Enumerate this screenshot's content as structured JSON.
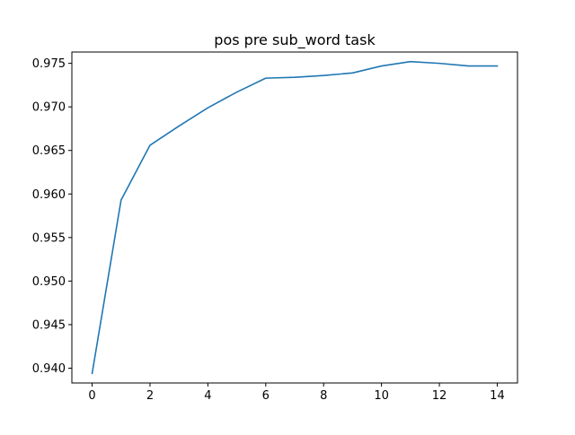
{
  "chart_data": {
    "type": "line",
    "title": "pos pre sub_word task",
    "xlabel": "",
    "ylabel": "",
    "x": [
      0,
      1,
      2,
      3,
      4,
      5,
      6,
      7,
      8,
      9,
      10,
      11,
      12,
      13,
      14
    ],
    "series": [
      {
        "values": [
          0.9394,
          0.9593,
          0.9656,
          0.9678,
          0.9699,
          0.9717,
          0.9733,
          0.9734,
          0.9736,
          0.9739,
          0.9747,
          0.9752,
          0.975,
          0.9747,
          0.9747
        ],
        "color": "#1f77b4"
      }
    ],
    "xlim": [
      -0.7,
      14.7
    ],
    "ylim": [
      0.9383,
      0.9763
    ],
    "xticks": [
      0,
      2,
      4,
      6,
      8,
      10,
      12,
      14
    ],
    "xtick_labels": [
      "0",
      "2",
      "4",
      "6",
      "8",
      "10",
      "12",
      "14"
    ],
    "yticks": [
      0.94,
      0.945,
      0.95,
      0.955,
      0.96,
      0.965,
      0.97,
      0.975
    ],
    "ytick_labels": [
      "0.940",
      "0.945",
      "0.950",
      "0.955",
      "0.960",
      "0.965",
      "0.970",
      "0.975"
    ],
    "grid": false,
    "legend": "none"
  }
}
